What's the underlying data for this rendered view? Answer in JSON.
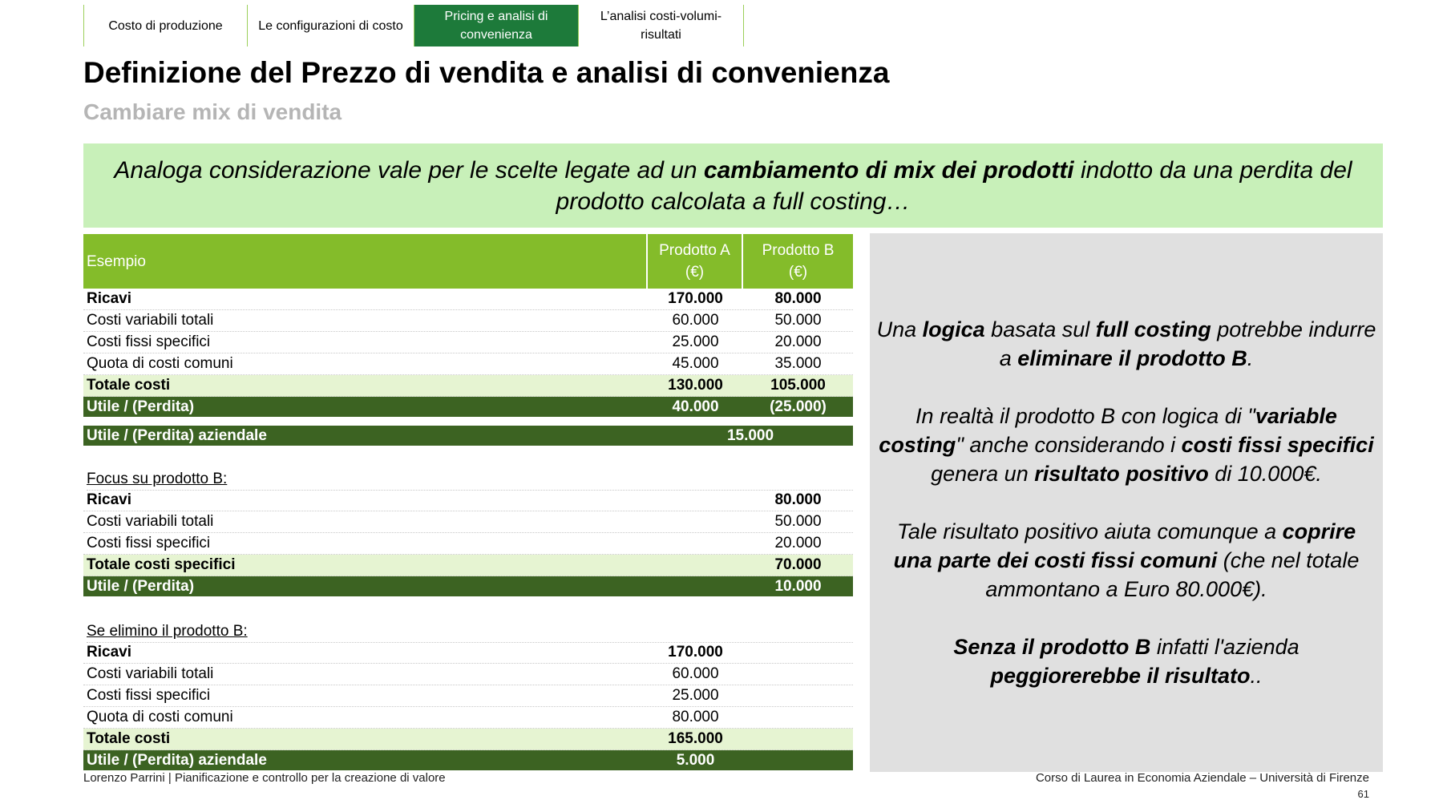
{
  "tabs": [
    "Costo di produzione",
    "Le configurazioni di costo",
    "Pricing e analisi di convenienza",
    "L’analisi costi-volumi-risultati"
  ],
  "active_tab": 2,
  "header": {
    "title": "Definizione del Prezzo di vendita e analisi di convenienza",
    "subtitle": "Cambiare mix di vendita"
  },
  "callout": [
    {
      "text": "Analoga considerazione vale per le scelte legate ad un "
    },
    {
      "text": "cambiamento di mix dei prodotti",
      "bold": true
    },
    {
      "text": " indotto da una perdita del prodotto calcolata a full costing…"
    }
  ],
  "table": {
    "header": [
      "Esempio",
      "Prodotto A (€)",
      "Prodotto B (€)"
    ],
    "sections": [
      {
        "rows": [
          {
            "label": "Ricavi",
            "a": "170.000",
            "b": "80.000",
            "style": "bold"
          },
          {
            "label": "Costi variabili totali",
            "a": "60.000",
            "b": "50.000",
            "style": "plain"
          },
          {
            "label": "Costi fissi specifici",
            "a": "25.000",
            "b": "20.000",
            "style": "plain"
          },
          {
            "label": "Quota di costi comuni",
            "a": "45.000",
            "b": "35.000",
            "style": "plain"
          },
          {
            "label": "Totale costi",
            "a": "130.000",
            "b": "105.000",
            "style": "total"
          },
          {
            "label": "Utile / (Perdita)",
            "a": "40.000",
            "b": "(25.000)",
            "style": "result"
          },
          {
            "label": "Utile / (Perdita) aziendale",
            "ab": "15.000",
            "style": "result-wide"
          }
        ]
      },
      {
        "heading": "Focus su prodotto B:",
        "rows": [
          {
            "label": "Ricavi",
            "b": "80.000",
            "style": "bold"
          },
          {
            "label": "Costi variabili totali",
            "b": "50.000",
            "style": "plain"
          },
          {
            "label": "Costi fissi specifici",
            "b": "20.000",
            "style": "plain"
          },
          {
            "label": "Totale costi specifici",
            "b": "70.000",
            "style": "total"
          },
          {
            "label": "Utile / (Perdita)",
            "b": "10.000",
            "style": "result"
          }
        ]
      },
      {
        "heading": "Se elimino il prodotto B:",
        "rows": [
          {
            "label": "Ricavi",
            "a": "170.000",
            "style": "bold"
          },
          {
            "label": "Costi variabili totali",
            "a": "60.000",
            "style": "plain"
          },
          {
            "label": "Costi fissi specifici",
            "a": "25.000",
            "style": "plain"
          },
          {
            "label": "Quota di costi comuni",
            "a": "80.000",
            "style": "plain"
          },
          {
            "label": "Totale costi",
            "a": "165.000",
            "style": "total"
          },
          {
            "label": "Utile / (Perdita) aziendale",
            "a": "5.000",
            "style": "result"
          }
        ]
      }
    ]
  },
  "panel": {
    "paragraphs": [
      [
        {
          "text": "Una "
        },
        {
          "text": "logica",
          "bold": true
        },
        {
          "text": " basata sul "
        },
        {
          "text": "full costing",
          "bold": true
        },
        {
          "text": " potrebbe indurre a "
        },
        {
          "text": "eliminare il prodotto B",
          "bold": true
        },
        {
          "text": "."
        }
      ],
      [
        {
          "text": "In realtà il prodotto B con logica di \""
        },
        {
          "text": "variable costing",
          "bold": true
        },
        {
          "text": "\" anche considerando i "
        },
        {
          "text": "costi fissi specifici",
          "bold": true
        },
        {
          "text": " genera un "
        },
        {
          "text": "risultato positivo",
          "bold": true
        },
        {
          "text": " di 10.000€."
        }
      ],
      [
        {
          "text": "Tale risultato positivo aiuta comunque a "
        },
        {
          "text": "coprire una parte dei costi fissi comuni",
          "bold": true
        },
        {
          "text": " (che nel totale ammontano a Euro 80.000€)."
        }
      ],
      [
        {
          "text": "Senza il prodotto B",
          "bold": true
        },
        {
          "text": " infatti l'azienda "
        },
        {
          "text": "peggiorerebbe il risultato",
          "bold": true
        },
        {
          "text": ".."
        }
      ]
    ]
  },
  "footer": {
    "left": "Lorenzo Parrini | Pianificazione e controllo per la creazione di valore",
    "right": "Corso di Laurea in Economia Aziendale – Università di Firenze",
    "page": "61"
  }
}
